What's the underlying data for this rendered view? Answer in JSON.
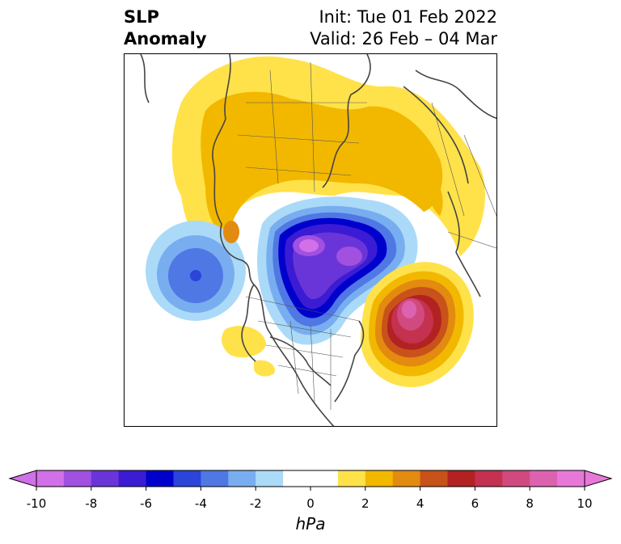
{
  "title": {
    "left_line1": "SLP",
    "left_line2": "Anomaly",
    "right_line1": "Init: Tue 01 Feb 2022",
    "right_line2": "Valid: 26 Feb – 04 Mar"
  },
  "colorbar": {
    "unit": "hPa",
    "ticks": [
      "-10",
      "-8",
      "-6",
      "-4",
      "-2",
      "0",
      "2",
      "4",
      "6",
      "8",
      "10"
    ],
    "bins": [
      {
        "from": -10,
        "to": -9,
        "color": "#d170e8"
      },
      {
        "from": -9,
        "to": -8,
        "color": "#a150e0"
      },
      {
        "from": -8,
        "to": -7,
        "color": "#6a35d8"
      },
      {
        "from": -7,
        "to": -6,
        "color": "#3b1bd4"
      },
      {
        "from": -6,
        "to": -5,
        "color": "#0000cc"
      },
      {
        "from": -5,
        "to": -4,
        "color": "#2a45d8"
      },
      {
        "from": -4,
        "to": -3,
        "color": "#5078e4"
      },
      {
        "from": -3,
        "to": -2,
        "color": "#78aef0"
      },
      {
        "from": -2,
        "to": -1,
        "color": "#aadaf8"
      },
      {
        "from": -1,
        "to": 1,
        "color": "#ffffff"
      },
      {
        "from": 1,
        "to": 2,
        "color": "#ffe24a"
      },
      {
        "from": 2,
        "to": 3,
        "color": "#f2b800"
      },
      {
        "from": 3,
        "to": 4,
        "color": "#e38a10"
      },
      {
        "from": 4,
        "to": 5,
        "color": "#c8521a"
      },
      {
        "from": 5,
        "to": 6,
        "color": "#b22222"
      },
      {
        "from": 6,
        "to": 7,
        "color": "#c4324f"
      },
      {
        "from": 7,
        "to": 8,
        "color": "#d04a80"
      },
      {
        "from": 8,
        "to": 9,
        "color": "#dc62b0"
      },
      {
        "from": 9,
        "to": 10,
        "color": "#e878d8"
      }
    ],
    "under_color": "#d170e8",
    "over_color": "#e878d8",
    "range": [
      -10,
      10
    ]
  },
  "map": {
    "projection": "polar stereographic (North Pole)",
    "features": [
      "negative SLP anomaly over Arctic / northern Canada",
      "positive anomaly over western Atlantic",
      "negative anomaly over northeast Pacific",
      "positive anomaly over Eurasia"
    ]
  }
}
